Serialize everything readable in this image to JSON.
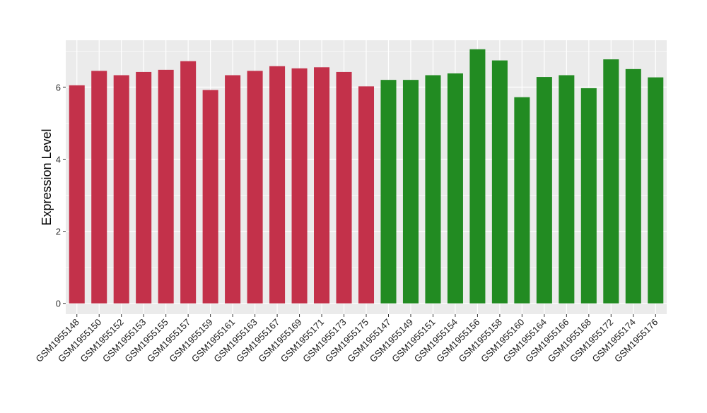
{
  "chart_data": {
    "type": "bar",
    "xlabel": "",
    "ylabel": "Expression Level",
    "ylim": [
      -0.3,
      7.3
    ],
    "yticks": [
      0,
      2,
      4,
      6
    ],
    "grid": true,
    "legend": "none",
    "colors": {
      "group1": "#c3314a",
      "group2": "#228b22",
      "panel": "#ebebeb",
      "gridline": "#ffffff"
    },
    "categories": [
      "GSM1955148",
      "GSM1955150",
      "GSM1955152",
      "GSM1955153",
      "GSM1955155",
      "GSM1955157",
      "GSM1955159",
      "GSM1955161",
      "GSM1955163",
      "GSM1955167",
      "GSM1955169",
      "GSM1955171",
      "GSM1955173",
      "GSM1955175",
      "GSM1955147",
      "GSM1955149",
      "GSM1955151",
      "GSM1955154",
      "GSM1955156",
      "GSM1955158",
      "GSM1955160",
      "GSM1955164",
      "GSM1955166",
      "GSM1955168",
      "GSM1955172",
      "GSM1955174",
      "GSM1955176"
    ],
    "values": [
      6.05,
      6.45,
      6.33,
      6.42,
      6.48,
      6.72,
      5.92,
      6.33,
      6.45,
      6.58,
      6.52,
      6.55,
      6.42,
      6.02,
      6.2,
      6.2,
      6.33,
      6.38,
      7.05,
      6.74,
      5.72,
      6.28,
      6.33,
      5.97,
      6.77,
      6.5,
      6.27
    ],
    "groups": [
      1,
      1,
      1,
      1,
      1,
      1,
      1,
      1,
      1,
      1,
      1,
      1,
      1,
      1,
      2,
      2,
      2,
      2,
      2,
      2,
      2,
      2,
      2,
      2,
      2,
      2,
      2
    ]
  }
}
